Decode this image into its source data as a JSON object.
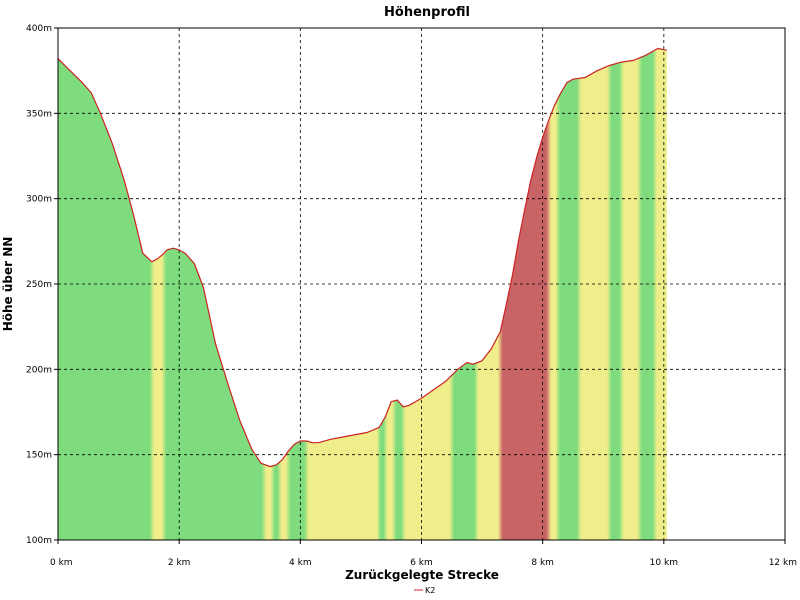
{
  "chart_data": {
    "type": "area",
    "title": "Höhenprofil",
    "xlabel": "Zurückgelegte Strecke",
    "ylabel": "Höhe über NN",
    "xlim": [
      0,
      12
    ],
    "ylim": [
      100,
      400
    ],
    "grid": true,
    "legend_position": "bottom",
    "x_ticks": [
      0,
      2,
      4,
      6,
      8,
      10,
      12
    ],
    "x_tick_labels": [
      "0 km",
      "2 km",
      "4 km",
      "6 km",
      "8 km",
      "10 km",
      "12 km"
    ],
    "y_ticks": [
      100,
      150,
      200,
      250,
      300,
      350,
      400
    ],
    "y_tick_labels": [
      "100m",
      "150m",
      "200m",
      "250m",
      "300m",
      "350m",
      "400m"
    ],
    "series": [
      {
        "name": "K2",
        "color": "#cc2222",
        "x": [
          0,
          0.2,
          0.4,
          0.55,
          0.7,
          0.9,
          1.1,
          1.25,
          1.4,
          1.55,
          1.65,
          1.75,
          1.8,
          1.9,
          2.0,
          2.1,
          2.25,
          2.4,
          2.6,
          2.8,
          3.0,
          3.2,
          3.35,
          3.5,
          3.6,
          3.7,
          3.8,
          3.9,
          4.0,
          4.1,
          4.2,
          4.3,
          4.5,
          4.8,
          5.1,
          5.3,
          5.4,
          5.5,
          5.6,
          5.7,
          5.8,
          6.0,
          6.2,
          6.4,
          6.6,
          6.75,
          6.85,
          7.0,
          7.15,
          7.3,
          7.4,
          7.5,
          7.6,
          7.7,
          7.8,
          7.9,
          8.0,
          8.1,
          8.2,
          8.3,
          8.4,
          8.5,
          8.7,
          8.9,
          9.1,
          9.3,
          9.5,
          9.7,
          9.9,
          10.05
        ],
        "values": [
          382,
          375,
          368,
          362,
          350,
          332,
          310,
          290,
          268,
          263,
          265,
          268,
          270,
          271,
          270,
          268,
          262,
          248,
          215,
          192,
          170,
          153,
          145,
          143,
          144,
          147,
          152,
          156,
          158,
          158,
          157,
          157,
          159,
          161,
          163,
          166,
          172,
          181,
          182,
          178,
          179,
          183,
          188,
          193,
          200,
          204,
          203,
          205,
          212,
          222,
          238,
          255,
          275,
          293,
          310,
          324,
          336,
          346,
          355,
          362,
          368,
          370,
          371,
          375,
          378,
          380,
          381,
          384,
          388,
          387
        ]
      }
    ],
    "slope_coloring": {
      "x_from": [
        0,
        1.55,
        1.75,
        3.4,
        3.55,
        3.65,
        3.8,
        4.1,
        4.8,
        5.3,
        5.4,
        5.55,
        5.7,
        5.9,
        6.5,
        6.8,
        6.9,
        7.05,
        7.3,
        8.1,
        8.25,
        8.45,
        8.6,
        8.8,
        9.1,
        9.3,
        9.6,
        9.85
      ],
      "x_to": [
        1.55,
        1.75,
        3.4,
        3.55,
        3.65,
        3.8,
        4.1,
        4.8,
        5.3,
        5.4,
        5.55,
        5.7,
        5.9,
        6.5,
        6.8,
        6.9,
        7.05,
        7.3,
        8.1,
        8.25,
        8.45,
        8.6,
        8.8,
        9.1,
        9.3,
        9.6,
        9.85,
        10.05
      ],
      "levels": [
        "flat",
        "moderate",
        "flat",
        "moderate",
        "flat",
        "moderate",
        "flat",
        "moderate",
        "moderate",
        "flat",
        "moderate",
        "flat",
        "moderate",
        "moderate",
        "flat",
        "flat",
        "moderate",
        "moderate",
        "steep",
        "moderate",
        "flat",
        "flat",
        "moderate",
        "moderate",
        "flat",
        "moderate",
        "flat",
        "moderate"
      ],
      "colors": {
        "flat": "#7edc7e",
        "moderate": "#f0ee8a",
        "steep": "#c96466"
      }
    }
  }
}
